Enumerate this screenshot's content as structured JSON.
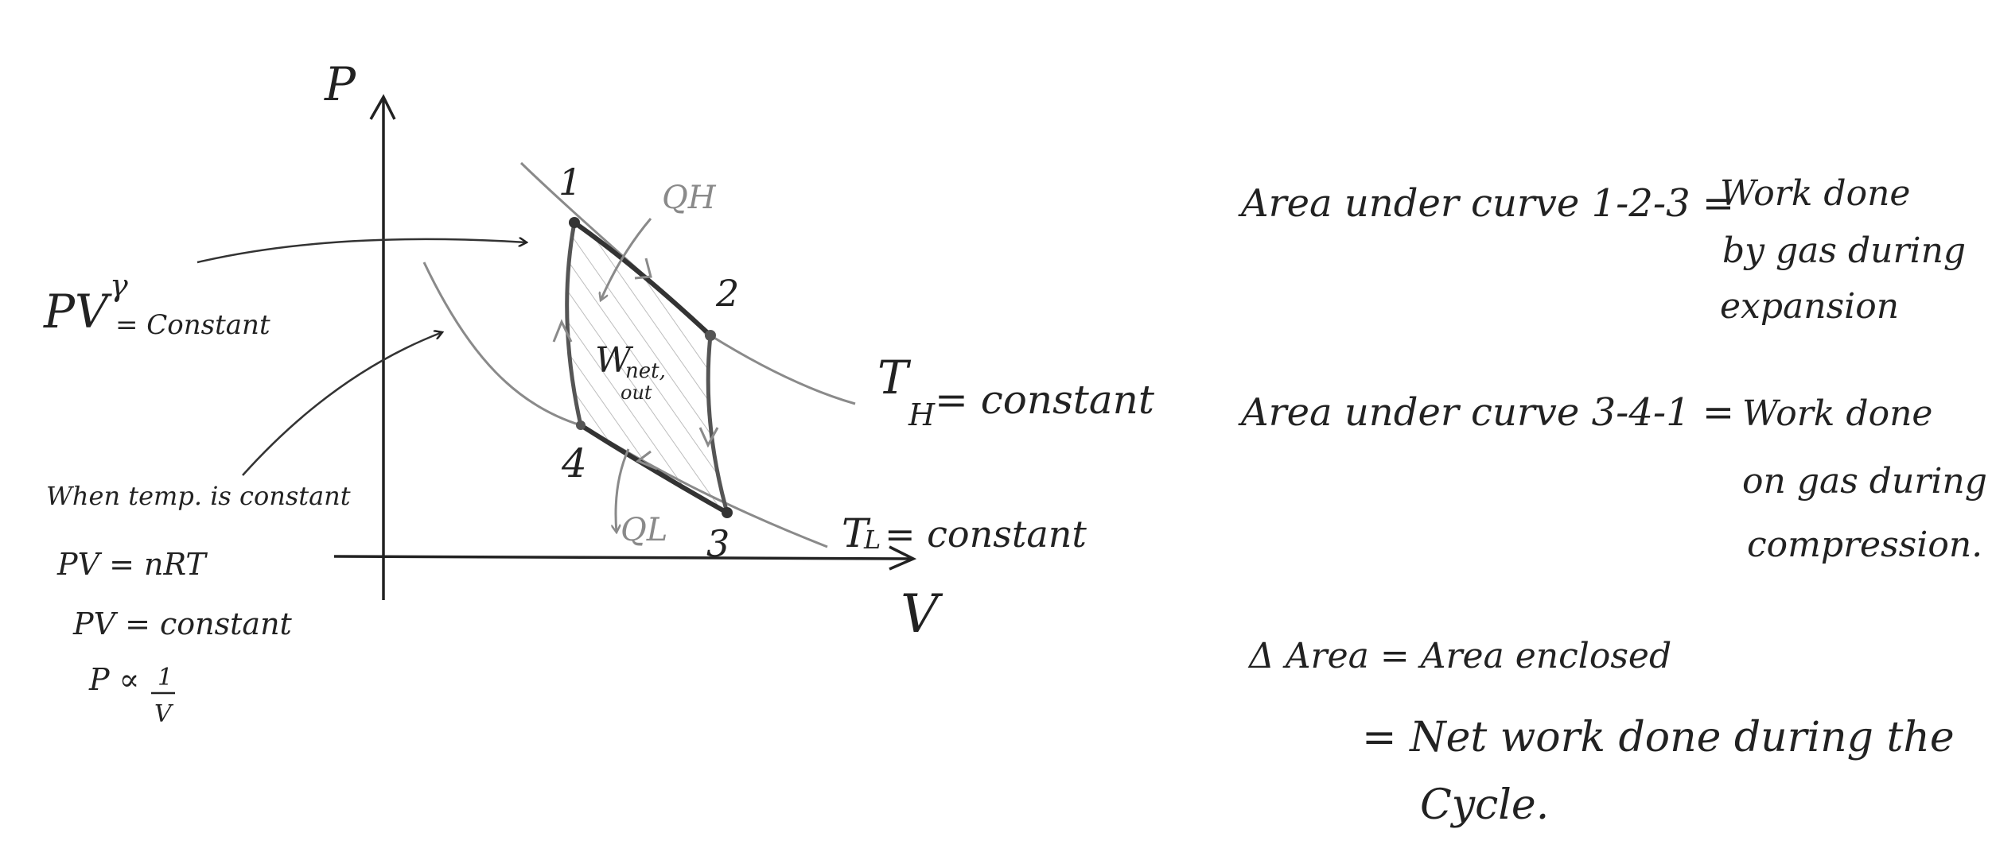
{
  "axes": {
    "y_label": "P",
    "x_label": "V"
  },
  "states": {
    "s1": "1",
    "s2": "2",
    "s3": "3",
    "s4": "4"
  },
  "heat": {
    "q_h": "QH",
    "q_l": "QL"
  },
  "work": {
    "main": "W",
    "sub_top": "net,",
    "sub_bottom": "out"
  },
  "isotherms": {
    "hot": {
      "t": "T",
      "sub": "H",
      "rest": "= constant"
    },
    "cold": {
      "t": "T",
      "sub": "L",
      "rest": "= constant"
    }
  },
  "left_notes": {
    "adiabatic": {
      "pv": "PV",
      "gamma": "γ",
      "rest": "= Constant"
    },
    "isothermal_heading": "When temp. is constant",
    "eq1": "PV = nRT",
    "eq2": "PV = constant",
    "eq3_left": "P ∝",
    "eq3_num": "1",
    "eq3_den": "V"
  },
  "right_notes": {
    "expansion_lhs": "Area under curve 1-2-3 =",
    "expansion_rhs": [
      "Work done",
      "by gas during",
      "expansion"
    ],
    "compression_lhs": "Area under curve 3-4-1 =",
    "compression_rhs": [
      "Work done",
      "on gas during",
      "compression."
    ],
    "delta_lhs": "Δ Area = Area enclosed",
    "delta_rhs": [
      "= Net work done during the",
      "Cycle."
    ]
  },
  "colors": {
    "ink": "#222222",
    "pencil": "#8a8a8a",
    "shade": "#b4b4b4"
  }
}
